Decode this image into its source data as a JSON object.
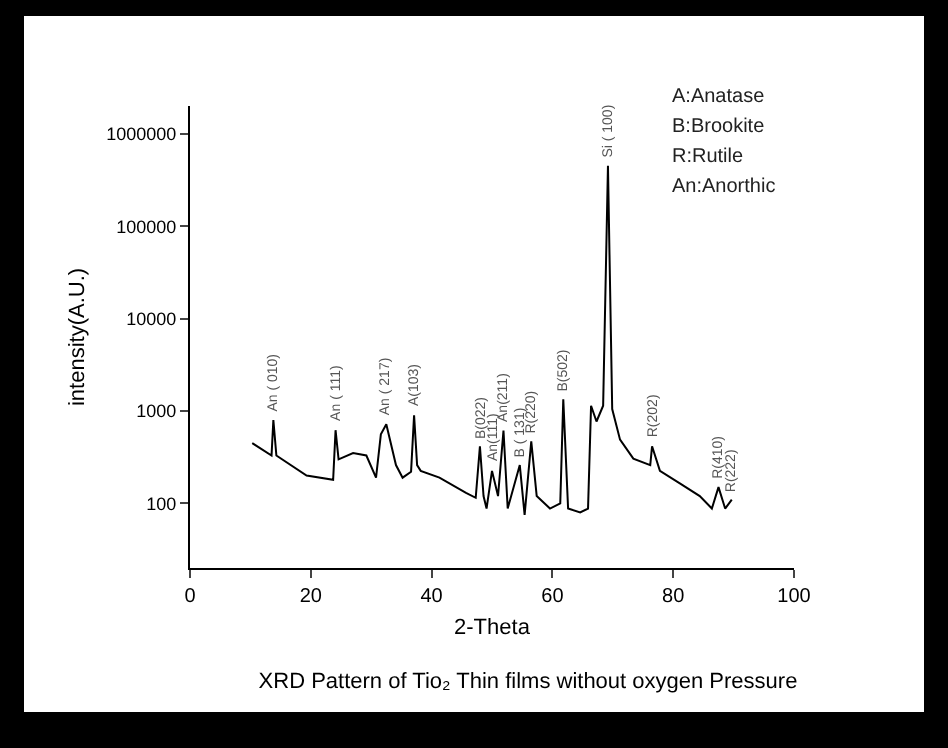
{
  "chart_data": {
    "type": "line",
    "title": "XRD Pattern of Tio₂ Thin films without oxygen Pressure",
    "xlabel": "2-Theta",
    "ylabel": "intensity(A.U.)",
    "log": "y",
    "grid": false,
    "marker": "none",
    "line_style": "solid",
    "x": [
      10.3,
      13.5,
      13.8,
      14.3,
      19.3,
      23.7,
      24.1,
      24.6,
      27,
      29.2,
      30.8,
      31.6,
      32.5,
      34.1,
      35.2,
      36.6,
      37.1,
      37.6,
      38.2,
      41.3,
      45.7,
      47.3,
      48,
      48.6,
      49.1,
      50,
      51,
      51.9,
      52.6,
      54.6,
      55.4,
      56.5,
      57.4,
      59.6,
      61.3,
      61.8,
      62.6,
      64.6,
      65.9,
      66.4,
      67.3,
      68.4,
      69.2,
      69.9,
      71.2,
      73.4,
      76.2,
      76.5,
      77.8,
      81.1,
      84.4,
      86.4,
      87.5,
      88.6,
      89.7
    ],
    "series": [
      {
        "color": "#000000",
        "values": [
          450,
          330,
          800,
          330,
          200,
          180,
          620,
          300,
          350,
          330,
          190,
          560,
          720,
          260,
          190,
          220,
          900,
          260,
          225,
          190,
          130,
          115,
          415,
          120,
          88,
          225,
          120,
          615,
          88,
          260,
          75,
          470,
          120,
          88,
          100,
          1340,
          88,
          80,
          88,
          1140,
          770,
          1140,
          450000,
          1050,
          490,
          305,
          260,
          415,
          225,
          165,
          120,
          88,
          150,
          88,
          110
        ]
      }
    ],
    "xlim": [
      0,
      100
    ],
    "xticks": [
      0,
      20,
      40,
      60,
      80,
      100
    ],
    "ylim": [
      20,
      2000000
    ],
    "yticks": [
      100,
      1000,
      10000,
      100000,
      1000000
    ],
    "annotations": [
      "A:Anatase",
      "B:Brookite",
      "R:Rutile",
      "An:Anorthic",
      {
        "text": "An ( 010)",
        "x": 13.8,
        "y": 900
      },
      {
        "text": "An ( 111)",
        "x": 24.1,
        "y": 700
      },
      {
        "text": "An ( 217)",
        "x": 32.5,
        "y": 800
      },
      {
        "text": "A(103)",
        "x": 37.1,
        "y": 1000
      },
      {
        "text": "B(022)",
        "x": 48,
        "y": 460
      },
      {
        "text": "An(111)",
        "x": 50,
        "y": 260
      },
      {
        "text": "An(211)",
        "x": 51.9,
        "y": 680
      },
      {
        "text": "B ( 131)",
        "x": 54.6,
        "y": 290
      },
      {
        "text": "R(220)",
        "x": 56.5,
        "y": 520
      },
      {
        "text": "B(502)",
        "x": 61.8,
        "y": 1480
      },
      {
        "text": "Si ( 100)",
        "x": 69.2,
        "y": 500000
      },
      {
        "text": "R(202)",
        "x": 76.5,
        "y": 460
      },
      {
        "text": "R(410)",
        "x": 87.5,
        "y": 165
      },
      {
        "text": "R(222)",
        "x": 89.7,
        "y": 122
      }
    ]
  }
}
